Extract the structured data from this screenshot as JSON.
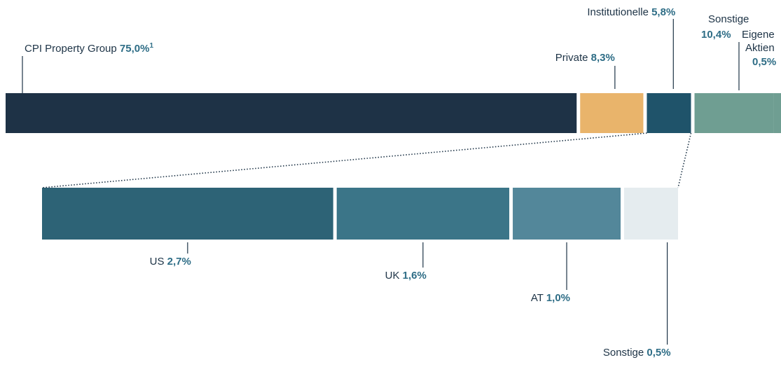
{
  "chart_data": [
    {
      "type": "bar",
      "segments": [
        {
          "label": "CPI Property Group",
          "value": 75.0,
          "display": "75,0%",
          "footnote": "1",
          "color": "#1e3246"
        },
        {
          "label": "Private",
          "value": 8.3,
          "display": "8,3%",
          "color": "#e9b46b"
        },
        {
          "label": "Institutionelle",
          "value": 5.8,
          "display": "5,8%",
          "color": "#1f536a"
        },
        {
          "label": "Sonstige",
          "value": 10.4,
          "display": "10,4%",
          "color": "#6f9e92"
        },
        {
          "label": "Eigene Aktien",
          "value": 0.5,
          "display": "0,5%",
          "color": "#6f9e92"
        }
      ]
    },
    {
      "type": "bar",
      "breakdown_of": "Institutionelle",
      "segments": [
        {
          "label": "US",
          "value": 2.7,
          "display": "2,7%",
          "color": "#2d6376"
        },
        {
          "label": "UK",
          "value": 1.6,
          "display": "1,6%",
          "color": "#3b7588"
        },
        {
          "label": "AT",
          "value": 1.0,
          "display": "1,0%",
          "color": "#53879a"
        },
        {
          "label": "Sonstige",
          "value": 0.5,
          "display": "0,5%",
          "color": "#e5ecef"
        }
      ]
    }
  ]
}
